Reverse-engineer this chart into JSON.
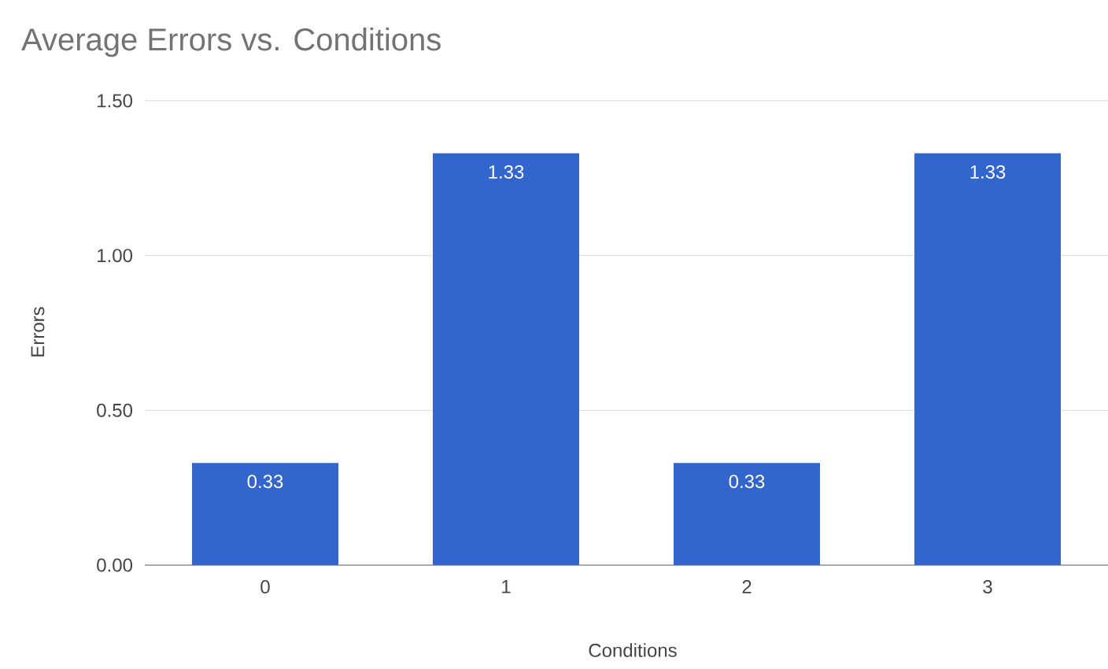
{
  "chart_data": {
    "type": "bar",
    "title": "Average Errors vs. Conditions",
    "xlabel": "Conditions",
    "ylabel": "Errors",
    "categories": [
      "0",
      "1",
      "2",
      "3"
    ],
    "values": [
      0.33,
      1.33,
      0.33,
      1.33
    ],
    "color": "#3366cc",
    "ylim": [
      0,
      1.5
    ],
    "yticks": [
      {
        "value": 0,
        "label": "0.00"
      },
      {
        "value": 0.5,
        "label": "0.50"
      },
      {
        "value": 1,
        "label": "1.00"
      },
      {
        "value": 1.5,
        "label": "1.50"
      }
    ],
    "grid": "y",
    "data_labels": true
  }
}
